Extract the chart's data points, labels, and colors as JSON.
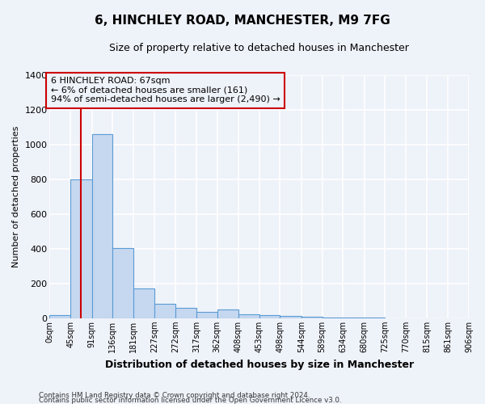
{
  "title_line1": "6, HINCHLEY ROAD, MANCHESTER, M9 7FG",
  "title_line2": "Size of property relative to detached houses in Manchester",
  "xlabel": "Distribution of detached houses by size in Manchester",
  "ylabel": "Number of detached properties",
  "bin_edges": [
    0,
    45,
    91,
    136,
    181,
    227,
    272,
    317,
    362,
    408,
    453,
    498,
    544,
    589,
    634,
    680,
    725,
    770,
    815,
    861,
    906
  ],
  "bin_labels": [
    "0sqm",
    "45sqm",
    "91sqm",
    "136sqm",
    "181sqm",
    "227sqm",
    "272sqm",
    "317sqm",
    "362sqm",
    "408sqm",
    "453sqm",
    "498sqm",
    "544sqm",
    "589sqm",
    "634sqm",
    "680sqm",
    "725sqm",
    "770sqm",
    "815sqm",
    "861sqm",
    "906sqm"
  ],
  "bar_heights": [
    20,
    800,
    1060,
    405,
    170,
    85,
    60,
    35,
    50,
    25,
    20,
    15,
    10,
    5,
    3,
    2,
    1,
    0,
    0,
    0
  ],
  "bar_color": "#c5d8f0",
  "bar_edge_color": "#5b9bd5",
  "property_size": 67,
  "annotation_line1": "6 HINCHLEY ROAD: 67sqm",
  "annotation_line2": "← 6% of detached houses are smaller (161)",
  "annotation_line3": "94% of semi-detached houses are larger (2,490) →",
  "vline_color": "#cc0000",
  "annotation_box_color": "#cc0000",
  "ylim": [
    0,
    1400
  ],
  "yticks": [
    0,
    200,
    400,
    600,
    800,
    1000,
    1200,
    1400
  ],
  "footer_line1": "Contains HM Land Registry data © Crown copyright and database right 2024.",
  "footer_line2": "Contains public sector information licensed under the Open Government Licence v3.0.",
  "background_color": "#eef2f9",
  "grid_color": "#ffffff"
}
